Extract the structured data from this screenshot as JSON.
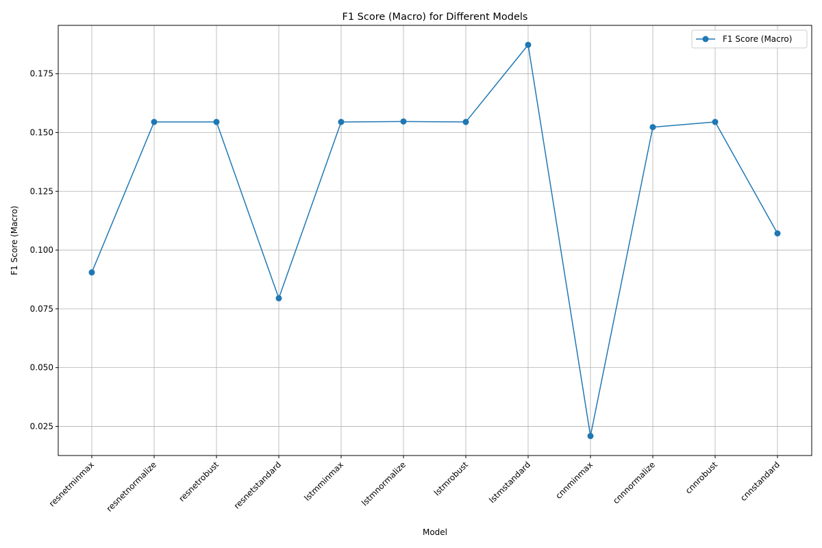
{
  "chart_data": {
    "type": "line",
    "title": "F1 Score (Macro) for Different Models",
    "xlabel": "Model",
    "ylabel": "F1 Score (Macro)",
    "categories": [
      "resnetminmax",
      "resnetnormalize",
      "resnetrobust",
      "resnetstandard",
      "lstmminmax",
      "lstmnormalize",
      "lstmrobust",
      "lstmstandard",
      "cnnminmax",
      "cnnnormalize",
      "cnnrobust",
      "cnnstandard"
    ],
    "series": [
      {
        "name": "F1 Score (Macro)",
        "color": "#1f77b4",
        "marker": "circle",
        "values": [
          0.0905,
          0.1545,
          0.1545,
          0.0795,
          0.1545,
          0.1547,
          0.1545,
          0.1873,
          0.0209,
          0.1523,
          0.1545,
          0.1071
        ]
      }
    ],
    "ylim": [
      0.0126,
      0.1956
    ],
    "yticks": [
      "0.025",
      "0.050",
      "0.075",
      "0.100",
      "0.125",
      "0.150",
      "0.175"
    ],
    "grid": true,
    "legend_position": "top-right"
  }
}
